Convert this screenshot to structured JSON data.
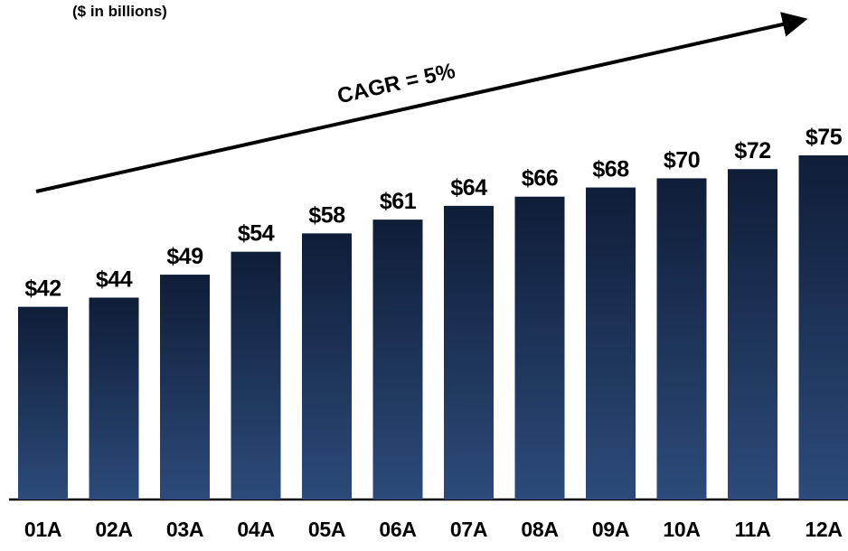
{
  "chart_data": {
    "type": "bar",
    "subtitle": "($ in billions)",
    "annotation": "CAGR = 5%",
    "categories": [
      "01A",
      "02A",
      "03A",
      "04A",
      "05A",
      "06A",
      "07A",
      "08A",
      "09A",
      "10A",
      "11A",
      "12A"
    ],
    "values": [
      42,
      44,
      49,
      54,
      58,
      61,
      64,
      66,
      68,
      70,
      72,
      75
    ],
    "value_labels": [
      "$42",
      "$44",
      "$49",
      "$54",
      "$58",
      "$61",
      "$64",
      "$66",
      "$68",
      "$70",
      "$72",
      "$75"
    ],
    "color": "#1b3158"
  }
}
